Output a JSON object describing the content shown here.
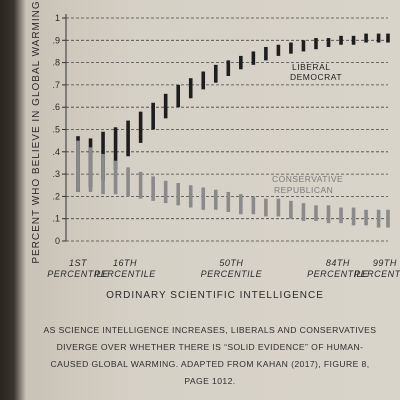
{
  "chart_data": {
    "type": "range_bars",
    "ylabel": "PERCENT WHO BELIEVE IN GLOBAL WARMING",
    "xlabel": "ORDINARY SCIENTIFIC INTELLIGENCE",
    "ylim": [
      0,
      1
    ],
    "yticks": [
      "0",
      ".1",
      ".2",
      ".3",
      ".4",
      ".5",
      ".6",
      ".7",
      ".8",
      ".9",
      "1"
    ],
    "x_tick_labels": [
      {
        "line1": "1ST",
        "line2": "PERCENTILE",
        "x": 1
      },
      {
        "line1": "16TH",
        "line2": "PERCENTILE",
        "x": 16
      },
      {
        "line1": "50TH",
        "line2": "PERCENTILE",
        "x": 50
      },
      {
        "line1": "84TH",
        "line2": "PERCENTILE",
        "x": 84
      },
      {
        "line1": "99TH",
        "line2": "PERCENTILE",
        "x": 99
      }
    ],
    "grid": "horizontal-dashed",
    "series": [
      {
        "name": "LIBERAL DEMOCRAT",
        "color": "#1e1e1e",
        "x": [
          1,
          5,
          9,
          13,
          17,
          21,
          25,
          29,
          33,
          37,
          41,
          45,
          49,
          53,
          57,
          61,
          65,
          69,
          73,
          77,
          81,
          85,
          89,
          93,
          97,
          100
        ],
        "low": [
          0.22,
          0.24,
          0.27,
          0.32,
          0.38,
          0.44,
          0.5,
          0.55,
          0.6,
          0.64,
          0.68,
          0.71,
          0.74,
          0.77,
          0.79,
          0.81,
          0.83,
          0.84,
          0.85,
          0.86,
          0.87,
          0.88,
          0.88,
          0.89,
          0.89,
          0.89
        ],
        "high": [
          0.47,
          0.46,
          0.49,
          0.51,
          0.54,
          0.58,
          0.62,
          0.66,
          0.7,
          0.73,
          0.76,
          0.79,
          0.81,
          0.83,
          0.85,
          0.87,
          0.88,
          0.89,
          0.9,
          0.91,
          0.91,
          0.92,
          0.92,
          0.93,
          0.93,
          0.93
        ]
      },
      {
        "name": "CONSERVATIVE REPUBLICAN",
        "color": "#8a8a8a",
        "x": [
          1,
          5,
          9,
          13,
          17,
          21,
          25,
          29,
          33,
          37,
          41,
          45,
          49,
          53,
          57,
          61,
          65,
          69,
          73,
          77,
          81,
          85,
          89,
          93,
          97,
          100
        ],
        "low": [
          0.22,
          0.22,
          0.21,
          0.21,
          0.2,
          0.19,
          0.18,
          0.17,
          0.16,
          0.15,
          0.14,
          0.14,
          0.13,
          0.12,
          0.12,
          0.11,
          0.11,
          0.1,
          0.09,
          0.09,
          0.08,
          0.08,
          0.07,
          0.07,
          0.06,
          0.06
        ],
        "high": [
          0.45,
          0.42,
          0.39,
          0.36,
          0.33,
          0.31,
          0.29,
          0.27,
          0.26,
          0.25,
          0.24,
          0.23,
          0.22,
          0.21,
          0.2,
          0.19,
          0.19,
          0.18,
          0.17,
          0.16,
          0.16,
          0.15,
          0.15,
          0.14,
          0.14,
          0.14
        ]
      }
    ],
    "annotations": {
      "liberal_line1": "LIBERAL",
      "liberal_line2": "DEMOCRAT",
      "conservative_line1": "CONSERVATIVE",
      "conservative_line2": "REPUBLICAN"
    }
  },
  "caption": "AS SCIENCE INTELLIGENCE INCREASES, LIBERALS AND CONSERVATIVES DIVERGE OVER WHETHER THERE IS “SOLID EVIDENCE” OF HUMAN-CAUSED GLOBAL WARMING. ADAPTED FROM KAHAN (2017), FIGURE 8, PAGE 1012."
}
